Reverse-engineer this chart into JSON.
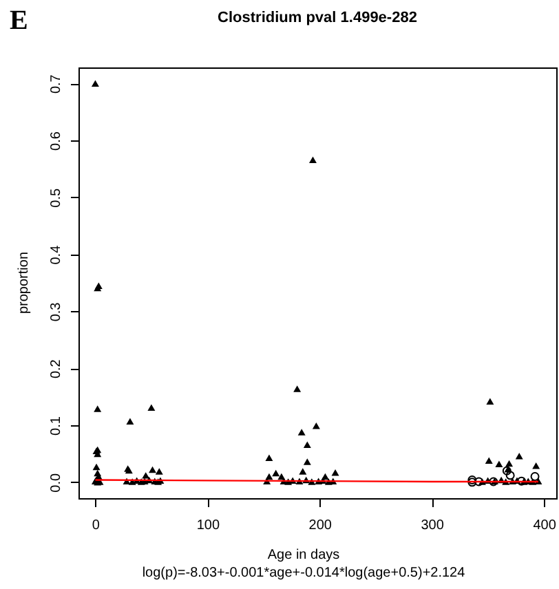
{
  "chart_data": {
    "type": "scatter",
    "title": "Clostridium pval 1.499e-282",
    "xlabel": "Age in days",
    "ylabel": "proportion",
    "annotations": [
      "E",
      "log(p)=-8.03+-0.001*age+-0.014*log(age+0.5)+2.124"
    ],
    "xlim": [
      -15,
      411
    ],
    "xticks": [
      0,
      100,
      200,
      300,
      400
    ],
    "ylim": [
      -0.028,
      0.728
    ],
    "yticks": [
      {
        "value": 0,
        "label": "0.0"
      },
      {
        "value": 0.1,
        "label": "0.1"
      },
      {
        "value": 0.2,
        "label": "0.2"
      },
      {
        "value": 0.3,
        "label": "0.3"
      },
      {
        "value": 0.4,
        "label": "0.4"
      },
      {
        "value": 0.5,
        "label": "0.5"
      },
      {
        "value": 0.6,
        "label": "0.6"
      },
      {
        "value": 0.7,
        "label": "0.7"
      }
    ],
    "grid": false,
    "legend": false,
    "series": [
      {
        "marker": "triangle",
        "color": "#000000",
        "x": [
          0,
          2,
          3,
          2,
          2,
          2,
          1,
          1,
          2,
          3,
          1,
          0,
          4,
          2,
          31,
          29,
          30,
          50,
          51,
          57,
          45,
          28,
          33,
          37,
          41,
          44,
          48,
          53,
          56,
          58,
          155,
          161,
          155,
          153,
          180,
          184,
          197,
          189,
          189,
          185,
          214,
          166,
          205,
          168,
          172,
          176,
          182,
          188,
          193,
          199,
          203,
          208,
          212,
          194,
          352,
          351,
          360,
          369,
          378,
          393,
          368,
          345,
          350,
          356,
          362,
          366,
          372,
          376,
          382,
          386,
          390,
          395
        ],
        "values": [
          0.7,
          0.341,
          0.345,
          0.129,
          0.057,
          0.05,
          0.055,
          0.027,
          0.016,
          0.01,
          0.005,
          0.002,
          0.001,
          0,
          0.107,
          0.024,
          0.021,
          0.131,
          0.022,
          0.019,
          0.012,
          0.002,
          0.001,
          0.003,
          0.001,
          0.002,
          0.004,
          0.002,
          0.001,
          0.003,
          0.043,
          0.016,
          0.01,
          0.002,
          0.164,
          0.088,
          0.099,
          0.066,
          0.036,
          0.019,
          0.017,
          0.01,
          0.01,
          0.002,
          0.001,
          0.003,
          0.002,
          0.004,
          0.001,
          0.002,
          0.003,
          0.001,
          0.002,
          0.566,
          0.142,
          0.038,
          0.032,
          0.033,
          0.046,
          0.029,
          0.023,
          0.001,
          0.003,
          0.002,
          0.004,
          0.001,
          0.002,
          0.003,
          0.001,
          0.002,
          0.001,
          0.002
        ]
      },
      {
        "marker": "circle",
        "color": "#000000",
        "x": [
          336,
          336,
          342,
          367,
          370,
          392,
          380,
          355
        ],
        "values": [
          0.004,
          0,
          0.001,
          0.02,
          0.012,
          0.01,
          0.002,
          0.001
        ]
      },
      {
        "type": "line",
        "color": "#ff0000",
        "x": [
          0,
          100,
          200,
          300,
          395
        ],
        "values": [
          0.004,
          0.003,
          0.002,
          0.001,
          0.001
        ]
      }
    ]
  }
}
